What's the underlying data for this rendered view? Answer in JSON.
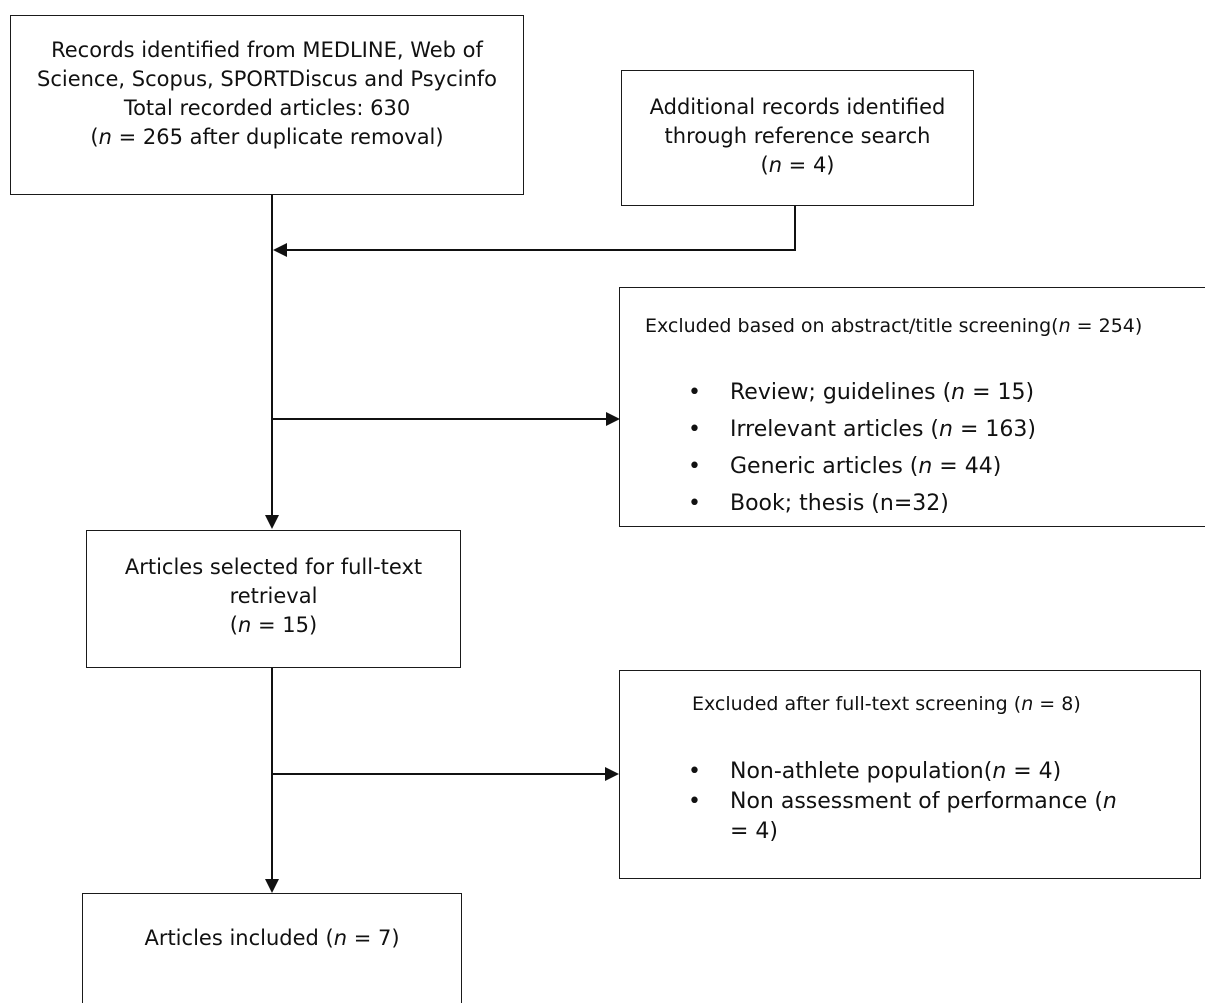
{
  "boxes": {
    "records_identified": {
      "line1": "Records identified from MEDLINE, Web of",
      "line2": "Science, Scopus, SPORTDiscus and Psycinfo",
      "line3": "Total recorded articles: 630",
      "line4_n": "n",
      "line4_rest": " = 265 after duplicate removal)",
      "line4_open": "("
    },
    "additional_records": {
      "line1": "Additional records identified",
      "line2": "through reference search",
      "line3_open": "(",
      "line3_n": "n",
      "line3_rest": " = 4)"
    },
    "excluded_abstract": {
      "heading_pre": "Excluded based on abstract/title screening(",
      "heading_n": "n",
      "heading_post": " = 254)",
      "items": [
        {
          "pre": "Review; guidelines (",
          "n": "n",
          "post": " =  15)"
        },
        {
          "pre": "Irrelevant articles (",
          "n": "n",
          "post": " = 163)"
        },
        {
          "pre": "Generic articles (",
          "n": "n",
          "post": " = 44)"
        },
        {
          "pre": "Book; thesis (n=32)",
          "n": "",
          "post": ""
        }
      ]
    },
    "full_text_selected": {
      "line1": "Articles selected for full-text",
      "line2": "retrieval",
      "line3_open": "(",
      "line3_n": "n",
      "line3_rest": " = 15)"
    },
    "excluded_fulltext": {
      "heading_pre": "Excluded after full-text screening (",
      "heading_n": "n",
      "heading_post": " = 8)",
      "item1_pre": "Non-athlete population(",
      "item1_n": "n",
      "item1_post": "  = 4)",
      "item2_line1_pre": "Non assessment of performance (",
      "item2_line1_n": "n",
      "item2_line2": "= 4)"
    },
    "articles_included": {
      "pre": "Articles included (",
      "n": "n",
      "post": " = 7)"
    }
  }
}
